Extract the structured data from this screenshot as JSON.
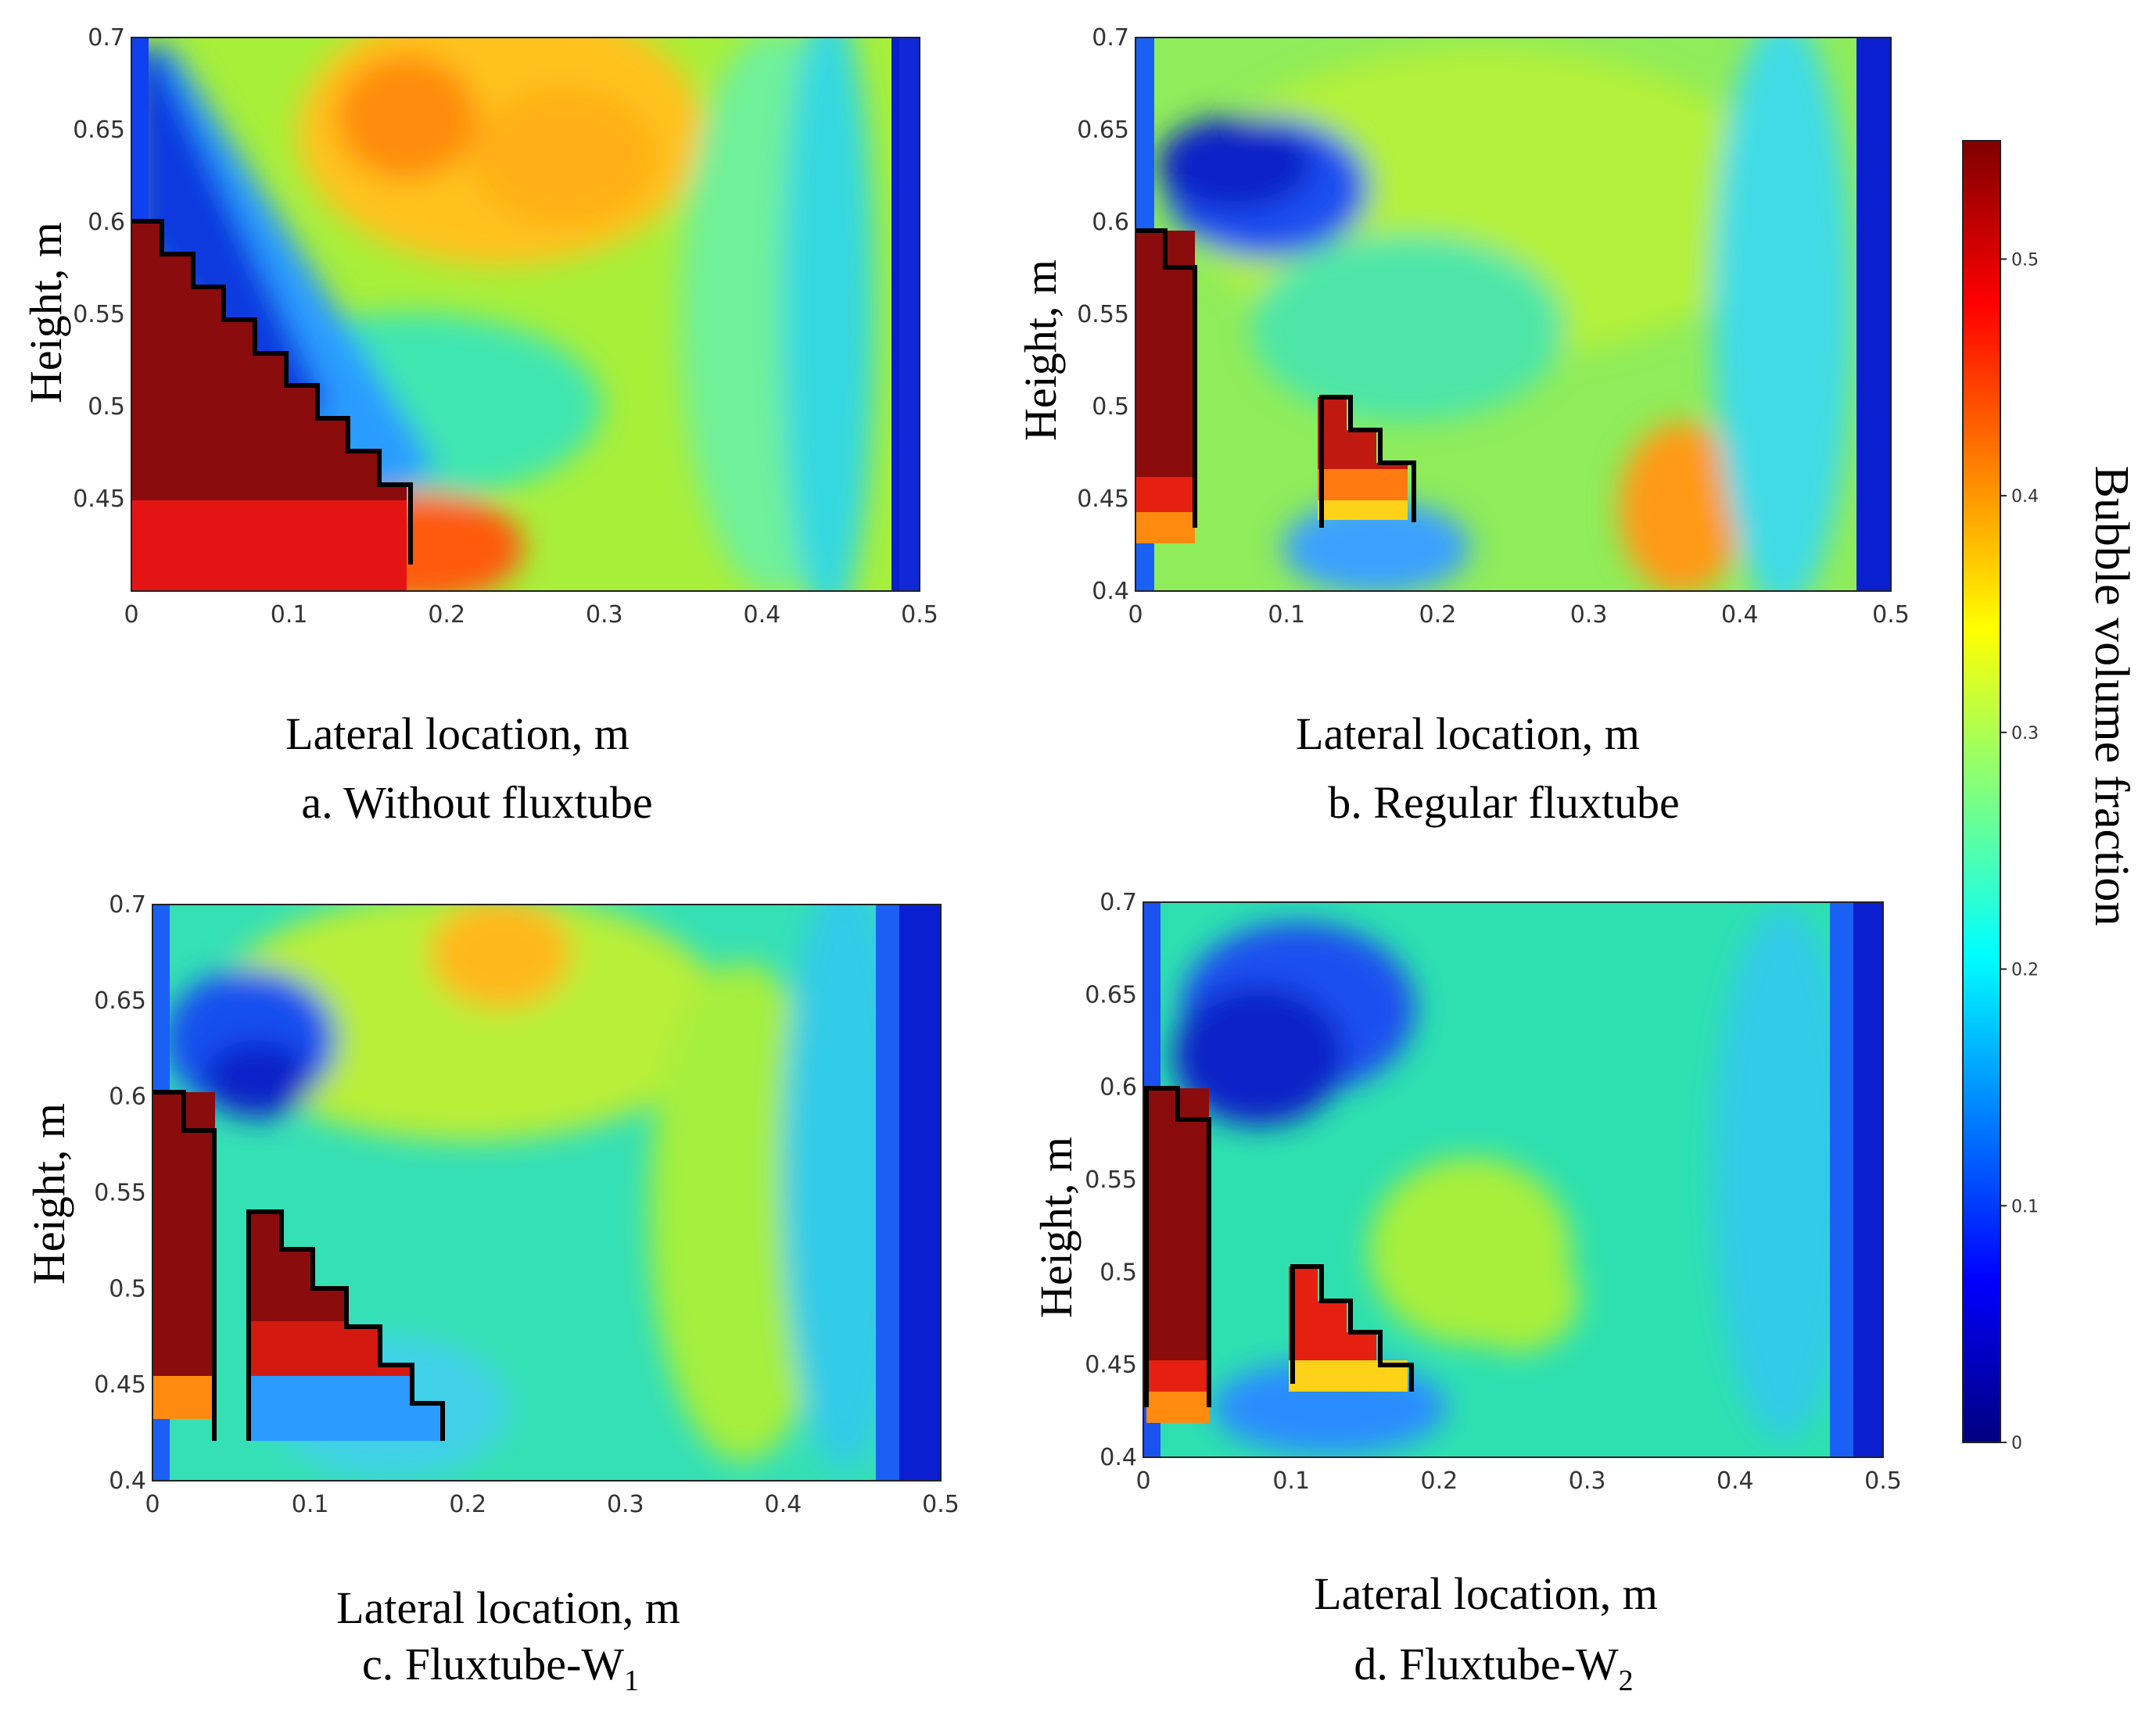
{
  "chart_data": [
    {
      "type": "heatmap",
      "panel": "a",
      "caption": "a. Without fluxtube",
      "xlabel": "Lateral location, m",
      "ylabel": "Height, m",
      "xticks": [
        "0",
        "0.1",
        "0.2",
        "0.3",
        "0.4",
        "0.5"
      ],
      "yticks": [
        "0.7",
        "0.65",
        "0.6",
        "0.55",
        "0.5",
        "0.45"
      ],
      "xlim": [
        0,
        0.5
      ],
      "ylim": [
        0.4,
        0.7
      ],
      "tube_outline": [
        [
          0,
          0.6
        ],
        [
          0.02,
          0.6
        ],
        [
          0.02,
          0.58
        ],
        [
          0.04,
          0.58
        ],
        [
          0.04,
          0.56
        ],
        [
          0.06,
          0.56
        ],
        [
          0.06,
          0.54
        ],
        [
          0.08,
          0.54
        ],
        [
          0.08,
          0.52
        ],
        [
          0.1,
          0.52
        ],
        [
          0.1,
          0.5
        ],
        [
          0.12,
          0.5
        ],
        [
          0.12,
          0.48
        ],
        [
          0.14,
          0.48
        ],
        [
          0.14,
          0.46
        ],
        [
          0.16,
          0.46
        ],
        [
          0.16,
          0.44
        ],
        [
          0.177,
          0.44
        ],
        [
          0.177,
          0.42
        ]
      ]
    },
    {
      "type": "heatmap",
      "panel": "b",
      "caption": "b. Regular fluxtube",
      "xlabel": "Lateral location, m",
      "ylabel": "Height, m",
      "xticks": [
        "0",
        "0.1",
        "0.2",
        "0.3",
        "0.4",
        "0.5"
      ],
      "yticks": [
        "0.7",
        "0.65",
        "0.6",
        "0.55",
        "0.5",
        "0.45",
        "0.4"
      ],
      "xlim": [
        0,
        0.5
      ],
      "ylim": [
        0.4,
        0.7
      ],
      "tube_outline": [
        [
          0,
          0.6
        ],
        [
          0.02,
          0.6
        ],
        [
          0.02,
          0.58
        ],
        [
          0.04,
          0.58
        ],
        [
          0.04,
          0.43
        ]
      ],
      "tube_outline_2": [
        [
          0.12,
          0.43
        ],
        [
          0.12,
          0.5
        ],
        [
          0.14,
          0.5
        ],
        [
          0.14,
          0.48
        ],
        [
          0.16,
          0.48
        ],
        [
          0.16,
          0.46
        ],
        [
          0.18,
          0.46
        ],
        [
          0.18,
          0.43
        ]
      ]
    },
    {
      "type": "heatmap",
      "panel": "c",
      "caption": "c. Fluxtube-W",
      "caption_sub": "1",
      "xlabel": "Lateral location, m",
      "ylabel": "Height, m",
      "xticks": [
        "0",
        "0.1",
        "0.2",
        "0.3",
        "0.4",
        "0.5"
      ],
      "yticks": [
        "0.7",
        "0.65",
        "0.6",
        "0.55",
        "0.5",
        "0.45",
        "0.4"
      ],
      "xlim": [
        0,
        0.5
      ],
      "ylim": [
        0.4,
        0.7
      ],
      "tube_outline": [
        [
          0,
          0.42
        ],
        [
          0,
          0.6
        ],
        [
          0.02,
          0.6
        ],
        [
          0.02,
          0.58
        ],
        [
          0.04,
          0.58
        ],
        [
          0.04,
          0.42
        ]
      ],
      "tube_outline_2": [
        [
          0.06,
          0.42
        ],
        [
          0.06,
          0.54
        ],
        [
          0.08,
          0.54
        ],
        [
          0.08,
          0.52
        ],
        [
          0.1,
          0.52
        ],
        [
          0.1,
          0.5
        ],
        [
          0.12,
          0.5
        ],
        [
          0.12,
          0.48
        ],
        [
          0.14,
          0.48
        ],
        [
          0.14,
          0.46
        ],
        [
          0.16,
          0.46
        ],
        [
          0.16,
          0.44
        ],
        [
          0.18,
          0.44
        ],
        [
          0.18,
          0.42
        ]
      ]
    },
    {
      "type": "heatmap",
      "panel": "d",
      "caption": "d. Fluxtube-W",
      "caption_sub": "2",
      "xlabel": "Lateral location, m",
      "ylabel": "Height, m",
      "xticks": [
        "0",
        "0.1",
        "0.2",
        "0.3",
        "0.4",
        "0.5"
      ],
      "yticks": [
        "0.7",
        "0.65",
        "0.6",
        "0.55",
        "0.5",
        "0.45",
        "0.4"
      ],
      "xlim": [
        0,
        0.5
      ],
      "ylim": [
        0.4,
        0.7
      ],
      "tube_outline": [
        [
          0,
          0.43
        ],
        [
          0,
          0.6
        ],
        [
          0.02,
          0.6
        ],
        [
          0.02,
          0.58
        ],
        [
          0.04,
          0.58
        ],
        [
          0.04,
          0.43
        ]
      ],
      "tube_outline_2": [
        [
          0.095,
          0.44
        ],
        [
          0.095,
          0.5
        ],
        [
          0.115,
          0.5
        ],
        [
          0.115,
          0.48
        ],
        [
          0.135,
          0.48
        ],
        [
          0.135,
          0.46
        ],
        [
          0.155,
          0.46
        ],
        [
          0.155,
          0.44
        ],
        [
          0.175,
          0.44
        ],
        [
          0.175,
          0.43
        ]
      ]
    }
  ],
  "colorbar": {
    "label": "Bubble volume fraction",
    "ticks": [
      "0.5",
      "0.4",
      "0.3",
      "0.2",
      "0.1",
      "0"
    ],
    "range": [
      0,
      0.55
    ],
    "colors": [
      "#00007f",
      "#0000ff",
      "#007fff",
      "#00ffff",
      "#7fff7f",
      "#ffff00",
      "#ff7f00",
      "#ff0000",
      "#7f0000"
    ]
  }
}
